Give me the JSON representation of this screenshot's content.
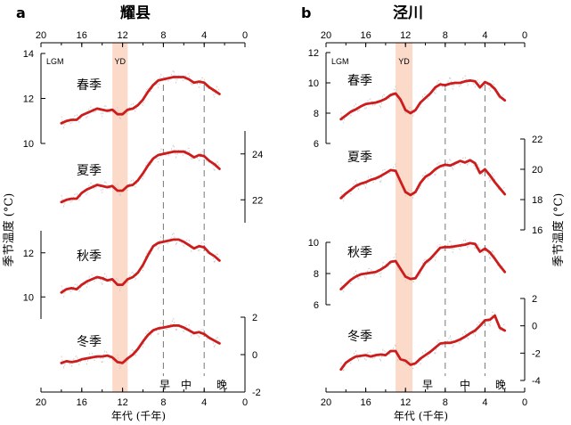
{
  "chart_data": [
    {
      "type": "line",
      "panel_letter": "a",
      "title": "耀县",
      "xlabel": "年代 (千年)",
      "ylabel": "季节温度 (°C)",
      "xlim": [
        20,
        0
      ],
      "x_ticks": [
        "20",
        "16",
        "12",
        "8",
        "4",
        "0"
      ],
      "annotations": {
        "lgm": "LGM",
        "yd": "YD",
        "phase_early": "早",
        "phase_mid": "中",
        "phase_late": "晚"
      },
      "yd_band": [
        13,
        11.5
      ],
      "dashed_lines_x": [
        8,
        4
      ],
      "series": [
        {
          "name": "春季",
          "axis_side": "left",
          "ylim": [
            10,
            14
          ],
          "ticks": [
            "10",
            "12",
            "14"
          ],
          "x": [
            18,
            17.5,
            17,
            16.5,
            16,
            15.5,
            15,
            14.5,
            14,
            13.5,
            13,
            12.5,
            12,
            11.5,
            11,
            10.5,
            10,
            9.5,
            9,
            8.5,
            8,
            7.5,
            7,
            6.5,
            6,
            5.5,
            5,
            4.5,
            4,
            3.5,
            3,
            2.5
          ],
          "values": [
            10.9,
            11.0,
            11.05,
            11.05,
            11.25,
            11.35,
            11.45,
            11.55,
            11.5,
            11.45,
            11.5,
            11.3,
            11.3,
            11.5,
            11.55,
            11.7,
            11.95,
            12.3,
            12.6,
            12.8,
            12.85,
            12.9,
            12.95,
            12.95,
            12.95,
            12.85,
            12.7,
            12.75,
            12.7,
            12.5,
            12.35,
            12.2
          ]
        },
        {
          "name": "夏季",
          "axis_side": "right",
          "ylim": [
            21,
            25
          ],
          "ticks": [
            "22",
            "24"
          ],
          "x": [
            18,
            17.5,
            17,
            16.5,
            16,
            15.5,
            15,
            14.5,
            14,
            13.5,
            13,
            12.5,
            12,
            11.5,
            11,
            10.5,
            10,
            9.5,
            9,
            8.5,
            8,
            7.5,
            7,
            6.5,
            6,
            5.5,
            5,
            4.5,
            4,
            3.5,
            3,
            2.5
          ],
          "values": [
            21.9,
            22.0,
            22.05,
            22.05,
            22.3,
            22.45,
            22.55,
            22.65,
            22.6,
            22.55,
            22.6,
            22.4,
            22.4,
            22.6,
            22.65,
            22.85,
            23.15,
            23.5,
            23.8,
            23.95,
            24.0,
            24.05,
            24.1,
            24.1,
            24.1,
            24.0,
            23.85,
            23.95,
            23.9,
            23.7,
            23.55,
            23.35
          ]
        },
        {
          "name": "秋季",
          "axis_side": "left",
          "ylim": [
            9,
            13
          ],
          "ticks": [
            "10",
            "12"
          ],
          "x": [
            18,
            17.5,
            17,
            16.5,
            16,
            15.5,
            15,
            14.5,
            14,
            13.5,
            13,
            12.5,
            12,
            11.5,
            11,
            10.5,
            10,
            9.5,
            9,
            8.5,
            8,
            7.5,
            7,
            6.5,
            6,
            5.5,
            5,
            4.5,
            4,
            3.5,
            3,
            2.5
          ],
          "values": [
            10.2,
            10.35,
            10.4,
            10.35,
            10.55,
            10.7,
            10.8,
            10.9,
            10.85,
            10.75,
            10.8,
            10.55,
            10.55,
            10.8,
            10.9,
            11.1,
            11.45,
            11.9,
            12.3,
            12.45,
            12.5,
            12.55,
            12.6,
            12.6,
            12.5,
            12.35,
            12.2,
            12.3,
            12.25,
            12.0,
            11.85,
            11.65
          ]
        },
        {
          "name": "冬季",
          "axis_side": "right",
          "ylim": [
            -2,
            2
          ],
          "ticks": [
            "-2",
            "0",
            "2"
          ],
          "x": [
            18,
            17.5,
            17,
            16.5,
            16,
            15.5,
            15,
            14.5,
            14,
            13.5,
            13,
            12.5,
            12,
            11.5,
            11,
            10.5,
            10,
            9.5,
            9,
            8.5,
            8,
            7.5,
            7,
            6.5,
            6,
            5.5,
            5,
            4.5,
            4,
            3.5,
            3,
            2.5
          ],
          "values": [
            -0.45,
            -0.35,
            -0.4,
            -0.35,
            -0.25,
            -0.2,
            -0.15,
            -0.1,
            -0.1,
            -0.05,
            -0.15,
            -0.4,
            -0.45,
            -0.2,
            0.0,
            0.3,
            0.7,
            1.05,
            1.3,
            1.4,
            1.45,
            1.5,
            1.55,
            1.55,
            1.45,
            1.3,
            1.15,
            1.2,
            1.1,
            0.9,
            0.75,
            0.6
          ]
        }
      ]
    },
    {
      "type": "line",
      "panel_letter": "b",
      "title": "泾川",
      "xlabel": "年代 (千年)",
      "ylabel": "季节温度 (°C)",
      "xlim": [
        20,
        0
      ],
      "x_ticks": [
        "20",
        "16",
        "12",
        "8",
        "4",
        "0"
      ],
      "annotations": {
        "lgm": "LGM",
        "yd": "YD",
        "phase_early": "早",
        "phase_mid": "中",
        "phase_late": "晚"
      },
      "yd_band": [
        13,
        11.3
      ],
      "dashed_lines_x": [
        8,
        4
      ],
      "series": [
        {
          "name": "春季",
          "axis_side": "left",
          "ylim": [
            6,
            12
          ],
          "ticks": [
            "6",
            "8",
            "10",
            "12"
          ],
          "x": [
            18.5,
            18,
            17.5,
            17,
            16.5,
            16,
            15.5,
            15,
            14.5,
            14,
            13.5,
            13,
            12.5,
            12,
            11.5,
            11,
            10.5,
            10,
            9.5,
            9,
            8.5,
            8,
            7.5,
            7,
            6.5,
            6,
            5.5,
            5,
            4.5,
            4,
            3.5,
            3,
            2.5,
            2
          ],
          "values": [
            7.6,
            7.85,
            8.1,
            8.25,
            8.45,
            8.6,
            8.65,
            8.7,
            8.8,
            8.95,
            9.2,
            9.3,
            8.9,
            8.2,
            8.0,
            8.2,
            8.7,
            9.0,
            9.3,
            9.7,
            9.9,
            9.85,
            9.95,
            10.0,
            10.0,
            10.1,
            10.15,
            10.1,
            9.7,
            10.05,
            9.9,
            9.6,
            9.1,
            8.85
          ]
        },
        {
          "name": "夏季",
          "axis_side": "right",
          "ylim": [
            16,
            22
          ],
          "ticks": [
            "16",
            "18",
            "20",
            "22"
          ],
          "x": [
            18.5,
            18,
            17.5,
            17,
            16.5,
            16,
            15.5,
            15,
            14.5,
            14,
            13.5,
            13,
            12.5,
            12,
            11.5,
            11,
            10.5,
            10,
            9.5,
            9,
            8.5,
            8,
            7.5,
            7,
            6.5,
            6,
            5.5,
            5,
            4.5,
            4,
            3.5,
            3,
            2.5,
            2
          ],
          "values": [
            18.1,
            18.4,
            18.65,
            18.9,
            19.05,
            19.15,
            19.3,
            19.4,
            19.55,
            19.75,
            19.95,
            19.9,
            19.2,
            18.5,
            18.3,
            18.5,
            19.1,
            19.5,
            19.7,
            20.0,
            20.2,
            20.3,
            20.25,
            20.4,
            20.55,
            20.45,
            20.6,
            20.4,
            19.75,
            20.0,
            19.6,
            19.15,
            18.75,
            18.35
          ]
        },
        {
          "name": "秋季",
          "axis_side": "left",
          "ylim": [
            6,
            10
          ],
          "ticks": [
            "6",
            "8",
            "10"
          ],
          "x": [
            18.5,
            18,
            17.5,
            17,
            16.5,
            16,
            15.5,
            15,
            14.5,
            14,
            13.5,
            13,
            12.5,
            12,
            11.5,
            11,
            10.5,
            10,
            9.5,
            9,
            8.5,
            8,
            7.5,
            7,
            6.5,
            6,
            5.5,
            5,
            4.5,
            4,
            3.5,
            3,
            2.5,
            2
          ],
          "values": [
            7.0,
            7.3,
            7.6,
            7.8,
            7.95,
            8.0,
            8.05,
            8.1,
            8.25,
            8.45,
            8.75,
            8.8,
            8.3,
            7.8,
            7.65,
            7.7,
            8.2,
            8.7,
            8.95,
            9.3,
            9.65,
            9.7,
            9.7,
            9.75,
            9.8,
            9.85,
            9.95,
            9.9,
            9.4,
            9.6,
            9.35,
            8.95,
            8.5,
            8.1
          ]
        },
        {
          "name": "冬季",
          "axis_side": "right",
          "ylim": [
            -4,
            2
          ],
          "ticks": [
            "-4",
            "-2",
            "0",
            "2"
          ],
          "x": [
            18.5,
            18,
            17.5,
            17,
            16.5,
            16,
            15.5,
            15,
            14.5,
            14,
            13.5,
            13,
            12.5,
            12,
            11.5,
            11,
            10.5,
            10,
            9.5,
            9,
            8.5,
            8,
            7.5,
            7,
            6.5,
            6,
            5.5,
            5,
            4.5,
            4,
            3.5,
            3,
            2.5,
            2
          ],
          "values": [
            -3.2,
            -2.7,
            -2.45,
            -2.25,
            -2.2,
            -2.15,
            -2.25,
            -2.15,
            -2.1,
            -2.15,
            -1.85,
            -1.85,
            -2.45,
            -2.55,
            -2.85,
            -2.75,
            -2.4,
            -2.15,
            -1.9,
            -1.6,
            -1.3,
            -1.25,
            -1.25,
            -1.15,
            -1.0,
            -0.8,
            -0.55,
            -0.35,
            0.0,
            0.4,
            0.45,
            0.75,
            -0.15,
            -0.35
          ]
        }
      ]
    }
  ]
}
